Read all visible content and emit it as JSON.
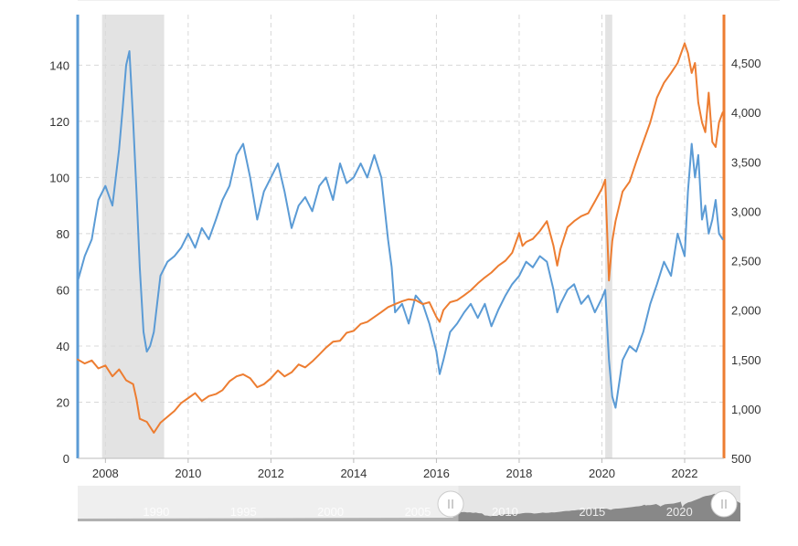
{
  "chart_data": {
    "type": "line",
    "xlim": [
      2007.33,
      2022.95
    ],
    "x_ticks": [
      {
        "value": 2008,
        "label": "2008"
      },
      {
        "value": 2010,
        "label": "2010"
      },
      {
        "value": 2012,
        "label": "2012"
      },
      {
        "value": 2014,
        "label": "2014"
      },
      {
        "value": 2016,
        "label": "2016"
      },
      {
        "value": 2018,
        "label": "2018"
      },
      {
        "value": 2020,
        "label": "2020"
      },
      {
        "value": 2022,
        "label": "2022"
      }
    ],
    "y_left": {
      "lim": [
        0,
        158
      ],
      "ticks": [
        {
          "value": 0,
          "label": "0"
        },
        {
          "value": 20,
          "label": "20"
        },
        {
          "value": 40,
          "label": "40"
        },
        {
          "value": 60,
          "label": "60"
        },
        {
          "value": 80,
          "label": "80"
        },
        {
          "value": 100,
          "label": "100"
        },
        {
          "value": 120,
          "label": "120"
        },
        {
          "value": 140,
          "label": "140"
        }
      ]
    },
    "y_right": {
      "lim": [
        500,
        4990
      ],
      "ticks": [
        {
          "value": 500,
          "label": "500"
        },
        {
          "value": 1000,
          "label": "1,000"
        },
        {
          "value": 1500,
          "label": "1,500"
        },
        {
          "value": 2000,
          "label": "2,000"
        },
        {
          "value": 2500,
          "label": "2,500"
        },
        {
          "value": 3000,
          "label": "3,000"
        },
        {
          "value": 3500,
          "label": "3,500"
        },
        {
          "value": 4000,
          "label": "4,000"
        },
        {
          "value": 4500,
          "label": "4,500"
        }
      ]
    },
    "recessions": [
      {
        "start": 2007.92,
        "end": 2009.42
      },
      {
        "start": 2020.08,
        "end": 2020.25
      }
    ],
    "series": [
      {
        "axis": "left",
        "color": "#5b9bd5",
        "x": [
          2007.33,
          2007.5,
          2007.67,
          2007.83,
          2008.0,
          2008.17,
          2008.33,
          2008.42,
          2008.5,
          2008.58,
          2008.67,
          2008.75,
          2008.83,
          2008.92,
          2009.0,
          2009.08,
          2009.17,
          2009.25,
          2009.33,
          2009.5,
          2009.67,
          2009.83,
          2010.0,
          2010.17,
          2010.33,
          2010.5,
          2010.67,
          2010.83,
          2011.0,
          2011.17,
          2011.33,
          2011.5,
          2011.67,
          2011.83,
          2012.0,
          2012.17,
          2012.33,
          2012.5,
          2012.67,
          2012.83,
          2013.0,
          2013.17,
          2013.33,
          2013.5,
          2013.67,
          2013.83,
          2014.0,
          2014.17,
          2014.33,
          2014.5,
          2014.67,
          2014.83,
          2014.92,
          2015.0,
          2015.17,
          2015.33,
          2015.5,
          2015.67,
          2015.83,
          2016.0,
          2016.08,
          2016.17,
          2016.33,
          2016.5,
          2016.67,
          2016.83,
          2017.0,
          2017.17,
          2017.33,
          2017.5,
          2017.67,
          2017.83,
          2018.0,
          2018.17,
          2018.33,
          2018.5,
          2018.67,
          2018.83,
          2018.92,
          2019.0,
          2019.17,
          2019.33,
          2019.5,
          2019.67,
          2019.83,
          2020.0,
          2020.08,
          2020.17,
          2020.25,
          2020.33,
          2020.5,
          2020.67,
          2020.83,
          2021.0,
          2021.17,
          2021.33,
          2021.5,
          2021.67,
          2021.83,
          2022.0,
          2022.08,
          2022.17,
          2022.25,
          2022.33,
          2022.42,
          2022.5,
          2022.58,
          2022.67,
          2022.75,
          2022.83,
          2022.92
        ],
        "y": [
          63,
          72,
          78,
          92,
          97,
          90,
          110,
          125,
          140,
          145,
          120,
          95,
          68,
          45,
          38,
          40,
          45,
          55,
          65,
          70,
          72,
          75,
          80,
          75,
          82,
          78,
          85,
          92,
          97,
          108,
          112,
          100,
          85,
          95,
          100,
          105,
          95,
          82,
          90,
          93,
          88,
          97,
          100,
          92,
          105,
          98,
          100,
          105,
          100,
          108,
          100,
          78,
          68,
          52,
          55,
          48,
          58,
          55,
          48,
          38,
          30,
          35,
          45,
          48,
          52,
          55,
          50,
          55,
          47,
          53,
          58,
          62,
          65,
          70,
          68,
          72,
          70,
          60,
          52,
          55,
          60,
          62,
          55,
          58,
          52,
          57,
          60,
          35,
          22,
          18,
          35,
          40,
          38,
          45,
          55,
          62,
          70,
          65,
          80,
          72,
          95,
          112,
          100,
          108,
          85,
          90,
          80,
          85,
          92,
          80,
          78
        ]
      },
      {
        "axis": "right",
        "color": "#ed7d31",
        "x": [
          2007.33,
          2007.5,
          2007.67,
          2007.83,
          2008.0,
          2008.17,
          2008.33,
          2008.5,
          2008.67,
          2008.75,
          2008.83,
          2009.0,
          2009.17,
          2009.33,
          2009.5,
          2009.67,
          2009.83,
          2010.0,
          2010.17,
          2010.33,
          2010.5,
          2010.67,
          2010.83,
          2011.0,
          2011.17,
          2011.33,
          2011.5,
          2011.67,
          2011.83,
          2012.0,
          2012.17,
          2012.33,
          2012.5,
          2012.67,
          2012.83,
          2013.0,
          2013.17,
          2013.33,
          2013.5,
          2013.67,
          2013.83,
          2014.0,
          2014.17,
          2014.33,
          2014.5,
          2014.67,
          2014.83,
          2015.0,
          2015.17,
          2015.33,
          2015.5,
          2015.67,
          2015.83,
          2016.0,
          2016.08,
          2016.17,
          2016.33,
          2016.5,
          2016.67,
          2016.83,
          2017.0,
          2017.17,
          2017.33,
          2017.5,
          2017.67,
          2017.83,
          2018.0,
          2018.08,
          2018.17,
          2018.33,
          2018.5,
          2018.67,
          2018.83,
          2018.92,
          2019.0,
          2019.17,
          2019.33,
          2019.5,
          2019.67,
          2019.83,
          2020.0,
          2020.08,
          2020.17,
          2020.25,
          2020.33,
          2020.5,
          2020.67,
          2020.83,
          2021.0,
          2021.17,
          2021.33,
          2021.5,
          2021.67,
          2021.83,
          2022.0,
          2022.08,
          2022.17,
          2022.25,
          2022.33,
          2022.42,
          2022.5,
          2022.58,
          2022.67,
          2022.75,
          2022.83,
          2022.92
        ],
        "y": [
          1500,
          1460,
          1490,
          1410,
          1440,
          1330,
          1400,
          1290,
          1250,
          1100,
          900,
          870,
          760,
          860,
          920,
          980,
          1060,
          1110,
          1160,
          1080,
          1130,
          1150,
          1190,
          1280,
          1330,
          1350,
          1310,
          1220,
          1250,
          1310,
          1390,
          1330,
          1370,
          1450,
          1420,
          1480,
          1550,
          1620,
          1680,
          1690,
          1770,
          1790,
          1860,
          1880,
          1930,
          1980,
          2030,
          2060,
          2090,
          2110,
          2100,
          2060,
          2080,
          1930,
          1880,
          2000,
          2080,
          2100,
          2150,
          2200,
          2270,
          2330,
          2380,
          2450,
          2500,
          2580,
          2780,
          2650,
          2690,
          2720,
          2800,
          2900,
          2650,
          2450,
          2620,
          2840,
          2900,
          2950,
          2980,
          3100,
          3230,
          3320,
          2300,
          2700,
          2900,
          3200,
          3300,
          3500,
          3700,
          3900,
          4150,
          4300,
          4400,
          4500,
          4700,
          4600,
          4400,
          4500,
          4100,
          3900,
          3800,
          4200,
          3700,
          3650,
          3900,
          4000
        ]
      }
    ]
  },
  "navigator": {
    "labels": [
      {
        "value": 1990,
        "label": "1990"
      },
      {
        "value": 1995,
        "label": "1995"
      },
      {
        "value": 2000,
        "label": "2000"
      },
      {
        "value": 2005,
        "label": "2005"
      },
      {
        "value": 2010,
        "label": "2010"
      },
      {
        "value": 2015,
        "label": "2015"
      },
      {
        "value": 2020,
        "label": "2020"
      }
    ],
    "window_start": 2007.33,
    "window_end": 2022.95
  }
}
